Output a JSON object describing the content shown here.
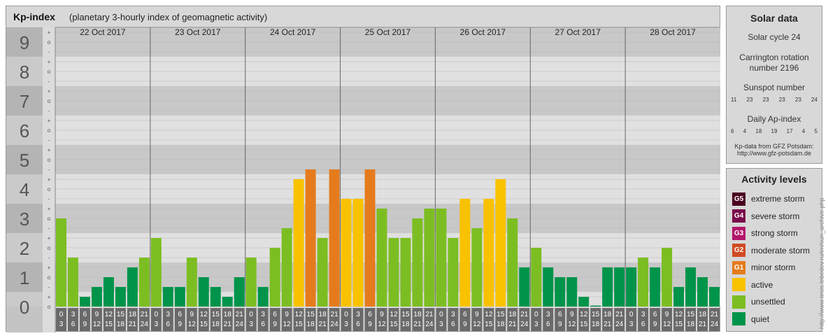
{
  "kp_panel": {
    "title": "Kp-index",
    "subtitle": "(planetary 3-hourly index of geomagnetic activity)"
  },
  "chart_data": {
    "type": "bar",
    "title": "Kp-index",
    "ylim": [
      0,
      9
    ],
    "y_ticks": [
      "0",
      "1",
      "2",
      "3",
      "4",
      "5",
      "6",
      "7",
      "8",
      "9"
    ],
    "subdivision_labels": [
      "o",
      "+",
      "-"
    ],
    "days": [
      "22 Oct 2017",
      "23 Oct 2017",
      "24 Oct 2017",
      "25 Oct 2017",
      "26 Oct 2017",
      "27 Oct 2017",
      "28 Oct 2017"
    ],
    "interval_start_labels": [
      "0",
      "3",
      "6",
      "9",
      "12",
      "15",
      "18",
      "21"
    ],
    "interval_end_labels": [
      "3",
      "6",
      "9",
      "12",
      "15",
      "18",
      "21",
      "24"
    ],
    "values": [
      [
        3.0,
        1.667,
        0.333,
        0.667,
        1.0,
        0.667,
        1.333,
        1.667
      ],
      [
        2.333,
        0.667,
        0.667,
        1.667,
        1.0,
        0.667,
        0.333,
        1.0
      ],
      [
        1.667,
        0.667,
        2.0,
        2.667,
        4.333,
        4.667,
        2.333,
        4.667
      ],
      [
        3.667,
        3.667,
        4.667,
        3.333,
        2.333,
        2.333,
        3.0,
        3.333
      ],
      [
        3.333,
        2.333,
        3.667,
        2.667,
        3.667,
        4.333,
        3.0,
        1.333
      ],
      [
        2.0,
        1.333,
        1.0,
        1.0,
        0.333,
        0.0,
        1.333,
        1.333
      ],
      [
        1.333,
        1.667,
        1.333,
        2.0,
        0.667,
        1.333,
        1.0,
        0.667
      ]
    ],
    "colors": {
      "quiet": "#00944a",
      "unsettled": "#7cbe22",
      "active": "#f9c200",
      "minor_storm": "#e57b1d",
      "moderate_storm": "#d14a23",
      "strong_storm": "#b2176a",
      "severe_storm": "#7a0a4a",
      "extreme_storm": "#4a0021"
    }
  },
  "solar_data": {
    "title": "Solar data",
    "solar_cycle": "Solar cycle 24",
    "carrington_line1": "Carrington rotation",
    "carrington_line2": "number 2196",
    "sunspot_title": "Sunspot number",
    "sunspot_values": [
      "11",
      "23",
      "23",
      "23",
      "23",
      "24"
    ],
    "ap_title": "Daily Ap-index",
    "ap_values": [
      "6",
      "4",
      "18",
      "19",
      "17",
      "4",
      "5"
    ],
    "source_line1": "Kp-data from GFZ Potsdam:",
    "source_line2": "http://www.gfz-potsdam.de"
  },
  "activity_levels": {
    "title": "Activity levels",
    "items": [
      {
        "badge": "G5",
        "label": "extreme storm",
        "color": "#4a0021"
      },
      {
        "badge": "G4",
        "label": "severe storm",
        "color": "#7a0a4a"
      },
      {
        "badge": "G3",
        "label": "strong storm",
        "color": "#b2176a"
      },
      {
        "badge": "G2",
        "label": "moderate storm",
        "color": "#d14a23"
      },
      {
        "badge": "G1",
        "label": "minor storm",
        "color": "#e57b1d"
      },
      {
        "badge": "",
        "label": "active",
        "color": "#f9c200"
      },
      {
        "badge": "",
        "label": "unsettled",
        "color": "#7cbe22"
      },
      {
        "badge": "",
        "label": "quiet",
        "color": "#00944a"
      }
    ]
  },
  "watermark": "http://www.tesis.lebedev.ru/en/sun_archive.php"
}
